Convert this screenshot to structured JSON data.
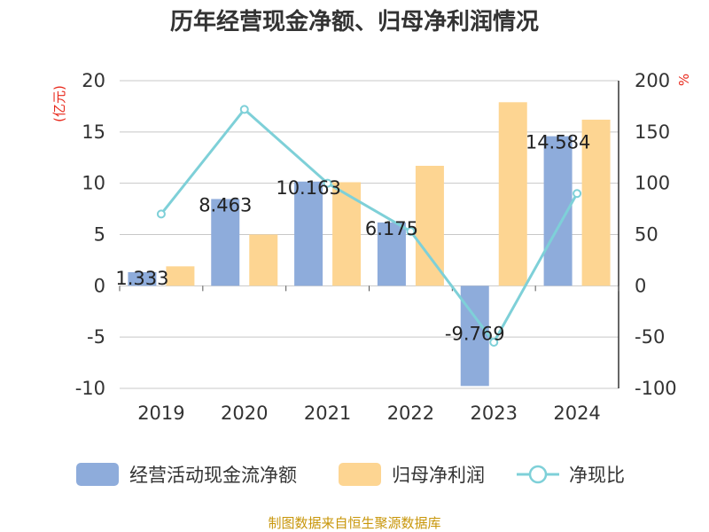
{
  "chart_data": {
    "type": "bar",
    "title": "历年经营现金净额、归母净利润情况",
    "categories": [
      "2019",
      "2020",
      "2021",
      "2022",
      "2023",
      "2024"
    ],
    "y_left": {
      "unit": "(亿元)",
      "range": [
        -10,
        20
      ],
      "ticks": [
        20,
        15,
        10,
        5,
        0,
        -5,
        -10
      ]
    },
    "y_right": {
      "unit": "%",
      "range": [
        -100,
        200
      ],
      "ticks": [
        200,
        150,
        100,
        50,
        0,
        -50,
        -100
      ]
    },
    "series": [
      {
        "name": "经营活动现金流净额",
        "kind": "bar",
        "axis": "left",
        "color": "#8eacdb",
        "values": [
          1.333,
          8.463,
          10.163,
          6.175,
          -9.769,
          14.584
        ],
        "labels": [
          "1.333",
          "8.463",
          "10.163",
          "6.175",
          "-9.769",
          "14.584"
        ]
      },
      {
        "name": "归母净利润",
        "kind": "bar",
        "axis": "left",
        "color": "#fdd592",
        "values": [
          1.9,
          5.0,
          10.1,
          11.7,
          17.9,
          16.2
        ]
      },
      {
        "name": "净现比",
        "kind": "line",
        "axis": "right",
        "color": "#7ed0d8",
        "values": [
          70,
          172,
          100,
          53,
          -55,
          90
        ]
      }
    ],
    "grid": true,
    "legend_position": "bottom"
  },
  "source": "制图数据来自恒生聚源数据库"
}
